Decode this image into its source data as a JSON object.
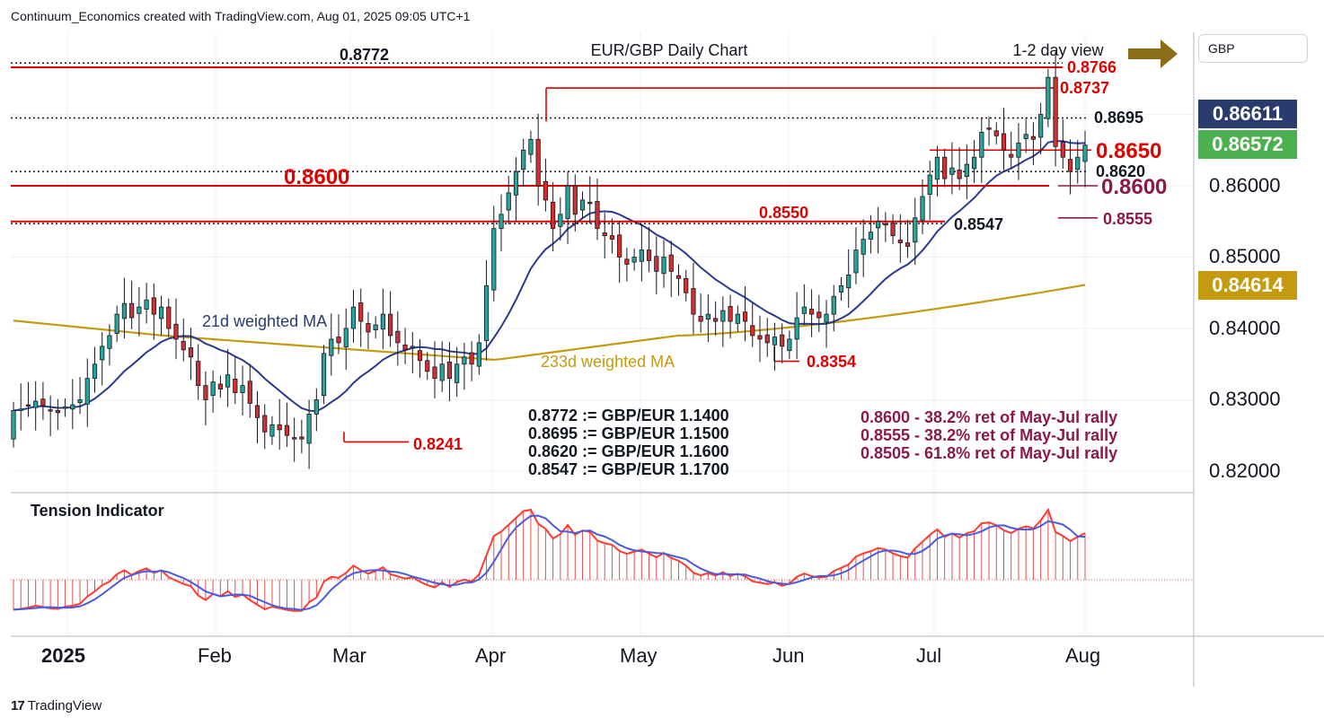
{
  "header": "Continuum_Economics created with TradingView.com, Aug 01, 2025 09:05 UTC+1",
  "currency": "GBP",
  "footer_brand": "TradingView",
  "chart_data": {
    "type": "candlestick",
    "title": "EUR/GBP Daily Chart",
    "view_label": "1-2 day view",
    "y_axis": {
      "ticks": [
        "0.86000",
        "0.85000",
        "0.84000",
        "0.83000",
        "0.82000"
      ],
      "range": [
        0.8175,
        0.8795
      ]
    },
    "x_axis": {
      "labels": [
        "2025",
        "Feb",
        "Mar",
        "Apr",
        "May",
        "Jun",
        "Jul",
        "Aug"
      ]
    },
    "price_badges": [
      {
        "value": "0.86611",
        "color": "#2a3b6d"
      },
      {
        "value": "0.86572",
        "color": "#4caf50"
      },
      {
        "value": "0.84614",
        "color": "#c49a10"
      }
    ],
    "levels": [
      {
        "label": "0.8772",
        "value": 0.8772,
        "style": "dotted",
        "color": "#131722"
      },
      {
        "label": "0.8766",
        "value": 0.8766,
        "style": "solid",
        "color": "#e00000"
      },
      {
        "label": "0.8737",
        "value": 0.8737,
        "style": "solid",
        "color": "#e00000"
      },
      {
        "label": "0.8695",
        "value": 0.8695,
        "style": "dotted",
        "color": "#131722"
      },
      {
        "label": "0.8650",
        "value": 0.865,
        "style": "solid",
        "color": "#e00000"
      },
      {
        "label": "0.8620",
        "value": 0.862,
        "style": "dotted",
        "color": "#131722"
      },
      {
        "label": "0.8600",
        "value": 0.86,
        "style": "solid",
        "color": "#e00000"
      },
      {
        "label": "0.8600",
        "value": 0.86,
        "style": "marker",
        "color": "#8b1a4a"
      },
      {
        "label": "0.8555",
        "value": 0.8555,
        "style": "marker",
        "color": "#8b1a4a"
      },
      {
        "label": "0.8550",
        "value": 0.855,
        "style": "solid",
        "color": "#e00000"
      },
      {
        "label": "0.8547",
        "value": 0.8547,
        "style": "dotted",
        "color": "#131722"
      },
      {
        "label": "0.8354",
        "value": 0.8354,
        "style": "marker",
        "color": "#e00000"
      },
      {
        "label": "0.8241",
        "value": 0.8241,
        "style": "marker",
        "color": "#e00000"
      }
    ],
    "ma_labels": {
      "ma21": "21d weighted MA",
      "ma233": "233d weighted MA"
    },
    "notes_left": [
      "0.8772 := GBP/EUR 1.1400",
      "0.8695 := GBP/EUR 1.1500",
      "0.8620 := GBP/EUR 1.1600",
      "0.8547 := GBP/EUR 1.1700"
    ],
    "notes_right": [
      "0.8600 - 38.2% ret of May-Jul rally",
      "0.8555 - 38.2% ret of May-Jul rally",
      "0.8505 - 61.8% ret of May-Jul rally"
    ],
    "indicator_title": "Tension Indicator",
    "colors": {
      "up": "#26a69a",
      "down": "#d32f2f",
      "ma21": "#2a3b8f",
      "ma233": "#c49a10",
      "level": "#e00000"
    },
    "closes": [
      0.8285,
      0.8287,
      0.8292,
      0.8298,
      0.8292,
      0.8285,
      0.8282,
      0.829,
      0.8293,
      0.83,
      0.833,
      0.835,
      0.8375,
      0.839,
      0.842,
      0.8435,
      0.8415,
      0.843,
      0.844,
      0.842,
      0.843,
      0.84,
      0.8385,
      0.837,
      0.836,
      0.832,
      0.83,
      0.8325,
      0.8315,
      0.8335,
      0.831,
      0.832,
      0.8295,
      0.8275,
      0.8255,
      0.8265,
      0.8258,
      0.825,
      0.8245,
      0.8245,
      0.828,
      0.83,
      0.8365,
      0.8385,
      0.838,
      0.84,
      0.843,
      0.841,
      0.8395,
      0.8405,
      0.842,
      0.839,
      0.838,
      0.837,
      0.8375,
      0.8355,
      0.834,
      0.833,
      0.835,
      0.833,
      0.835,
      0.836,
      0.835,
      0.838,
      0.846,
      0.854,
      0.856,
      0.859,
      0.862,
      0.865,
      0.8665,
      0.86,
      0.858,
      0.854,
      0.856,
      0.86,
      0.856,
      0.858,
      0.8575,
      0.854,
      0.853,
      0.8525,
      0.85,
      0.849,
      0.85,
      0.851,
      0.8495,
      0.848,
      0.85,
      0.848,
      0.847,
      0.845,
      0.842,
      0.841,
      0.842,
      0.841,
      0.8425,
      0.841,
      0.842,
      0.841,
      0.839,
      0.8385,
      0.838,
      0.8388,
      0.8375,
      0.8385,
      0.8415,
      0.843,
      0.842,
      0.8415,
      0.842,
      0.8445,
      0.846,
      0.8475,
      0.851,
      0.8525,
      0.8535,
      0.855,
      0.8545,
      0.853,
      0.852,
      0.8515,
      0.8555,
      0.8585,
      0.8615,
      0.864,
      0.861,
      0.8625,
      0.861,
      0.863,
      0.864,
      0.8675,
      0.868,
      0.867,
      0.865,
      0.864,
      0.866,
      0.8672,
      0.8665,
      0.87,
      0.8752,
      0.8655,
      0.864,
      0.862,
      0.864,
      0.8657
    ]
  }
}
